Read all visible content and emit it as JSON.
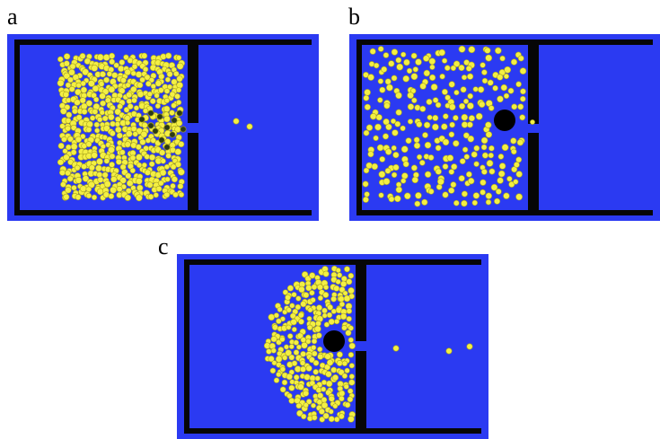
{
  "panels": [
    {
      "id": "a",
      "label": "a"
    },
    {
      "id": "b",
      "label": "b"
    },
    {
      "id": "c",
      "label": "c"
    }
  ],
  "colors": {
    "water": "#2b3af2",
    "wall": "#060606",
    "particle": "#f3ef44",
    "particle_edge": "#a8a31c",
    "jammed": "#2c3a16",
    "obstacle": "#000000"
  }
}
